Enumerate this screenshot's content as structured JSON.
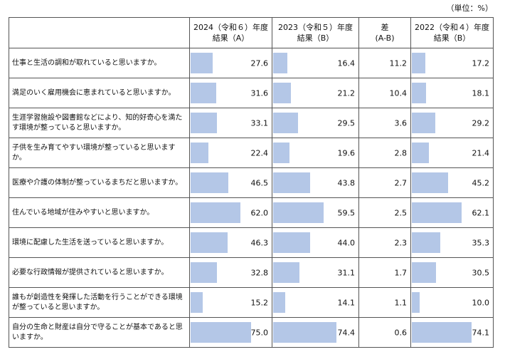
{
  "unit": "（単位：%）",
  "headers": {
    "question": "",
    "a": [
      "2024（令和６）年度",
      "結果（A）"
    ],
    "b": [
      "2023（令和５）年度",
      "結果（B）"
    ],
    "diff": [
      "差",
      "(A-B)"
    ],
    "c": [
      "2022（令和４）年度",
      "結果（B）"
    ]
  },
  "chart_data": {
    "type": "table",
    "scale_max": 100,
    "rows": [
      {
        "question": "仕事と生活の調和が取れていると思いますか。",
        "a": 27.6,
        "b": 16.4,
        "diff": 11.2,
        "c": 17.2
      },
      {
        "question": "満足のいく雇用機会に恵まれていると思いますか。",
        "a": 31.6,
        "b": 21.2,
        "diff": 10.4,
        "c": 18.1
      },
      {
        "question": "生涯学習施設や図書館などにより、知的好奇心を満たす環境が整っていると思いますか。",
        "a": 33.1,
        "b": 29.5,
        "diff": 3.6,
        "c": 29.2
      },
      {
        "question": "子供を生み育てやすい環境が整っていると思いますか。",
        "a": 22.4,
        "b": 19.6,
        "diff": 2.8,
        "c": 21.4
      },
      {
        "question": "医療や介護の体制が整っているまちだと思いますか。",
        "a": 46.5,
        "b": 43.8,
        "diff": 2.7,
        "c": 45.2
      },
      {
        "question": "住んでいる地域が住みやすいと思いますか。",
        "a": 62.0,
        "b": 59.5,
        "diff": 2.5,
        "c": 62.1
      },
      {
        "question": "環境に配慮した生活を送っていると思いますか。",
        "a": 46.3,
        "b": 44.0,
        "diff": 2.3,
        "c": 35.3
      },
      {
        "question": "必要な行政情報が提供されていると思いますか。",
        "a": 32.8,
        "b": 31.1,
        "diff": 1.7,
        "c": 30.5
      },
      {
        "question": "誰もが創造性を発揮した活動を行うことができる環境が整っていると思いますか。",
        "a": 15.2,
        "b": 14.1,
        "diff": 1.1,
        "c": 10.0
      },
      {
        "question": "自分の生命と財産は自分で守ることが基本であると思いますか。",
        "a": 75.0,
        "b": 74.4,
        "diff": 0.6,
        "c": 74.1
      }
    ]
  },
  "colors": {
    "bar": "#b4c7e7",
    "border": "#555555"
  }
}
